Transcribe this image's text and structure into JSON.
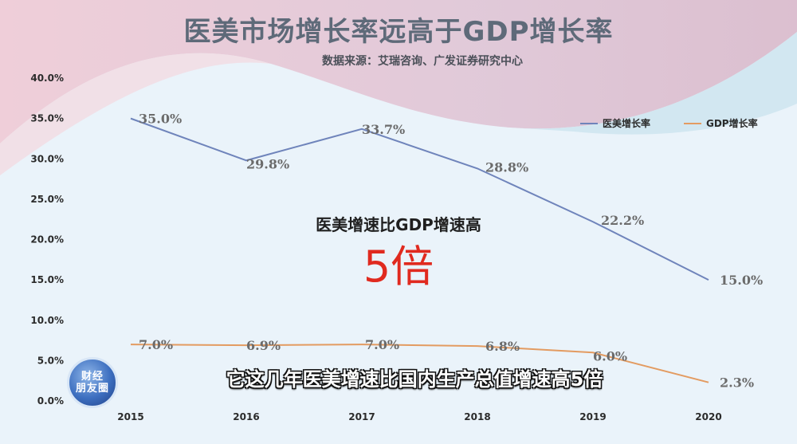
{
  "title": "医美市场增长率远高于GDP增长率",
  "source": "数据来源：艾瑞咨询、广发证券研究中心",
  "chart_data": {
    "type": "line",
    "categories": [
      "2015",
      "2016",
      "2017",
      "2018",
      "2019",
      "2020"
    ],
    "series": [
      {
        "name": "医美增长率",
        "values": [
          35.0,
          29.8,
          33.7,
          28.8,
          22.2,
          15.0
        ],
        "labels": [
          "35.0%",
          "29.8%",
          "33.7%",
          "28.8%",
          "22.2%",
          "15.0%"
        ],
        "color": "#6f84bb"
      },
      {
        "name": "GDP增长率",
        "values": [
          7.0,
          6.9,
          7.0,
          6.8,
          6.0,
          2.3
        ],
        "labels": [
          "7.0%",
          "6.9%",
          "7.0%",
          "6.8%",
          "6.0%",
          "2.3%"
        ],
        "color": "#e39b61"
      }
    ],
    "yticks": [
      "0.0%",
      "5.0%",
      "10.0%",
      "15.0%",
      "20.0%",
      "25.0%",
      "30.0%",
      "35.0%",
      "40.0%"
    ],
    "ylim": [
      0,
      40
    ],
    "legend": "top-right",
    "grid": false
  },
  "callout": {
    "label": "医美增速比GDP增速高",
    "value": "5倍"
  },
  "caption": "它这几年医美增速比国内生产总值增速高5倍",
  "logo": {
    "line1": "财经",
    "line2": "朋友圈"
  }
}
